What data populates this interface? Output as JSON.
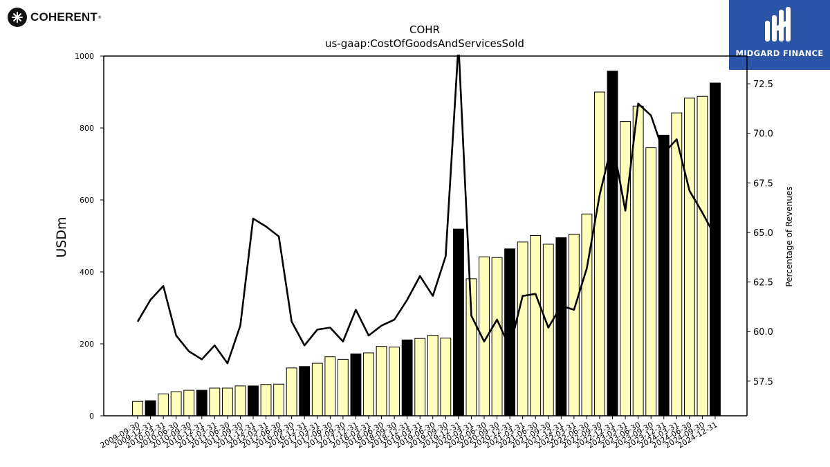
{
  "branding": {
    "left_logo_text": "COHERENT",
    "left_logo_mark": "®",
    "left_logo_icon": "coherent-star-icon",
    "right_logo_text": "MIDGARD FINANCE",
    "right_logo_icon": "midgard-m-icon",
    "right_logo_bg": "#2a55a8"
  },
  "chart_data": {
    "type": "bar",
    "title": "COHR",
    "subtitle": "us-gaap:CostOfGoodsAndServicesSold",
    "ylabel": "USDm",
    "y2label": "Percentage of Revenues",
    "ylim": [
      0,
      1000
    ],
    "y2lim": [
      55.75,
      73.9
    ],
    "yticks": [
      "0",
      "200",
      "400",
      "600",
      "800",
      "1000"
    ],
    "y2ticks": [
      "57.5",
      "60.0",
      "62.5",
      "65.0",
      "67.5",
      "70.0",
      "72.5"
    ],
    "bar_color": "#ffffbb",
    "highlight_color": "#000000",
    "line_color": "#000000",
    "categories": [
      "2009-09-30",
      "2009-12-31",
      "2010-03-31",
      "2010-06-30",
      "2010-09-30",
      "2010-12-31",
      "2011-03-31",
      "2011-06-30",
      "2011-09-30",
      "2011-12-31",
      "2012-03-31",
      "2012-06-30",
      "2016-09-30",
      "2016-12-31",
      "2017-03-31",
      "2017-06-30",
      "2017-09-30",
      "2017-12-31",
      "2018-03-31",
      "2018-06-30",
      "2018-09-30",
      "2018-12-31",
      "2019-03-31",
      "2019-06-30",
      "2019-09-30",
      "2019-12-31",
      "2020-03-31",
      "2020-06-30",
      "2020-09-30",
      "2020-12-31",
      "2021-03-31",
      "2021-06-30",
      "2021-09-30",
      "2021-12-31",
      "2022-03-31",
      "2022-06-30",
      "2022-09-30",
      "2022-12-31",
      "2023-03-31",
      "2023-06-30",
      "2023-09-30",
      "2023-12-31",
      "2024-03-31",
      "2024-06-30",
      "2024-09-30",
      "2024-12-31"
    ],
    "series": [
      {
        "name": "CostOfGoodsAndServicesSold",
        "values": [
          40,
          42,
          61,
          67,
          71,
          71,
          77,
          77,
          83,
          83,
          87,
          88,
          133,
          137,
          146,
          164,
          157,
          172,
          175,
          193,
          191,
          211,
          215,
          224,
          216,
          519,
          381,
          442,
          440,
          464,
          483,
          501,
          477,
          495,
          505,
          561,
          900,
          958,
          818,
          861,
          745,
          780,
          842,
          883,
          888,
          925
        ],
        "highlight": [
          false,
          true,
          false,
          false,
          false,
          true,
          false,
          false,
          false,
          true,
          false,
          false,
          false,
          true,
          false,
          false,
          false,
          true,
          false,
          false,
          false,
          true,
          false,
          false,
          false,
          true,
          false,
          false,
          false,
          true,
          false,
          false,
          false,
          true,
          false,
          false,
          false,
          true,
          false,
          false,
          false,
          true,
          false,
          false,
          false,
          true
        ]
      },
      {
        "name": "Percentage of Revenues",
        "axis": "right",
        "values": [
          60.5,
          61.6,
          62.3,
          59.8,
          59.0,
          58.6,
          59.3,
          58.4,
          60.3,
          65.7,
          65.3,
          64.8,
          60.5,
          59.3,
          60.1,
          60.2,
          59.5,
          61.1,
          59.8,
          60.3,
          60.6,
          61.6,
          62.8,
          61.8,
          63.8,
          74.5,
          60.8,
          59.5,
          60.6,
          59.2,
          61.8,
          61.9,
          60.2,
          61.3,
          61.1,
          63.2,
          66.9,
          69.6,
          66.1,
          71.5,
          70.9,
          69.0,
          69.7,
          67.1,
          66.0,
          64.8
        ]
      }
    ]
  }
}
